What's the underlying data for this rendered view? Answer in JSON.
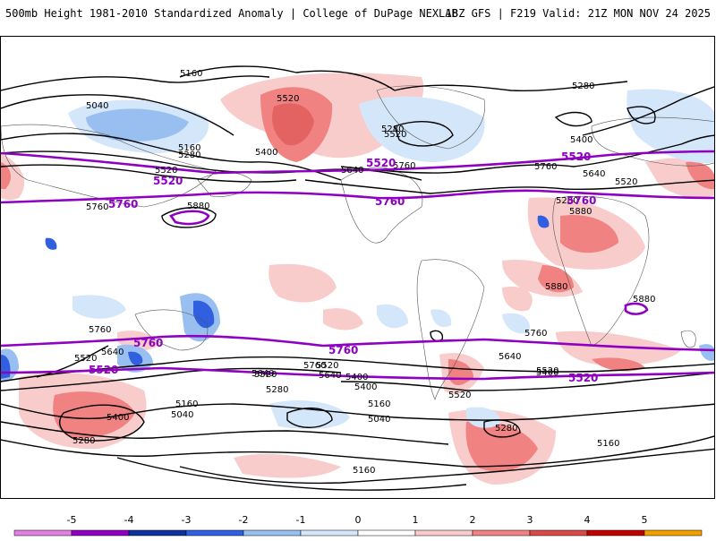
{
  "header": {
    "left": "500mb Height 1981-2010 Standardized Anomaly | College of DuPage NEXLAB",
    "right": "18Z GFS | F219 Valid: 21Z MON NOV 24 2025"
  },
  "map": {
    "height_contour_labels": [
      "5160",
      "5520",
      "5040",
      "5280",
      "5400",
      "5280",
      "5160",
      "5640",
      "5520",
      "5880",
      "5760",
      "5280",
      "5400",
      "5640",
      "5520",
      "5760",
      "5880",
      "5880",
      "5880",
      "5760",
      "5640",
      "5520",
      "5760",
      "5520",
      "5400",
      "5280",
      "5160",
      "5040",
      "5400",
      "5280",
      "5160",
      "5040",
      "5640",
      "5760",
      "5520",
      "5640",
      "5520",
      "5400",
      "5280",
      "5160",
      "5160",
      "5280",
      "5760",
      "5640",
      "5520",
      "5400",
      "5520"
    ],
    "highlight_contour_labels": [
      "5520",
      "5760",
      "5520",
      "5760",
      "5760",
      "5520",
      "5760",
      "5520",
      "5760",
      "5520"
    ]
  },
  "colorbar": {
    "ticks": [
      "-5",
      "-4",
      "-3",
      "-2",
      "-1",
      "0",
      "1",
      "2",
      "3",
      "4",
      "5"
    ],
    "colors": [
      "#e080e0",
      "#9000c0",
      "#1030a0",
      "#3060e0",
      "#98bff0",
      "#d4e6f9",
      "#ffffff",
      "#f9cccc",
      "#f08282",
      "#d84a4a",
      "#c00000",
      "#f2a000"
    ]
  }
}
